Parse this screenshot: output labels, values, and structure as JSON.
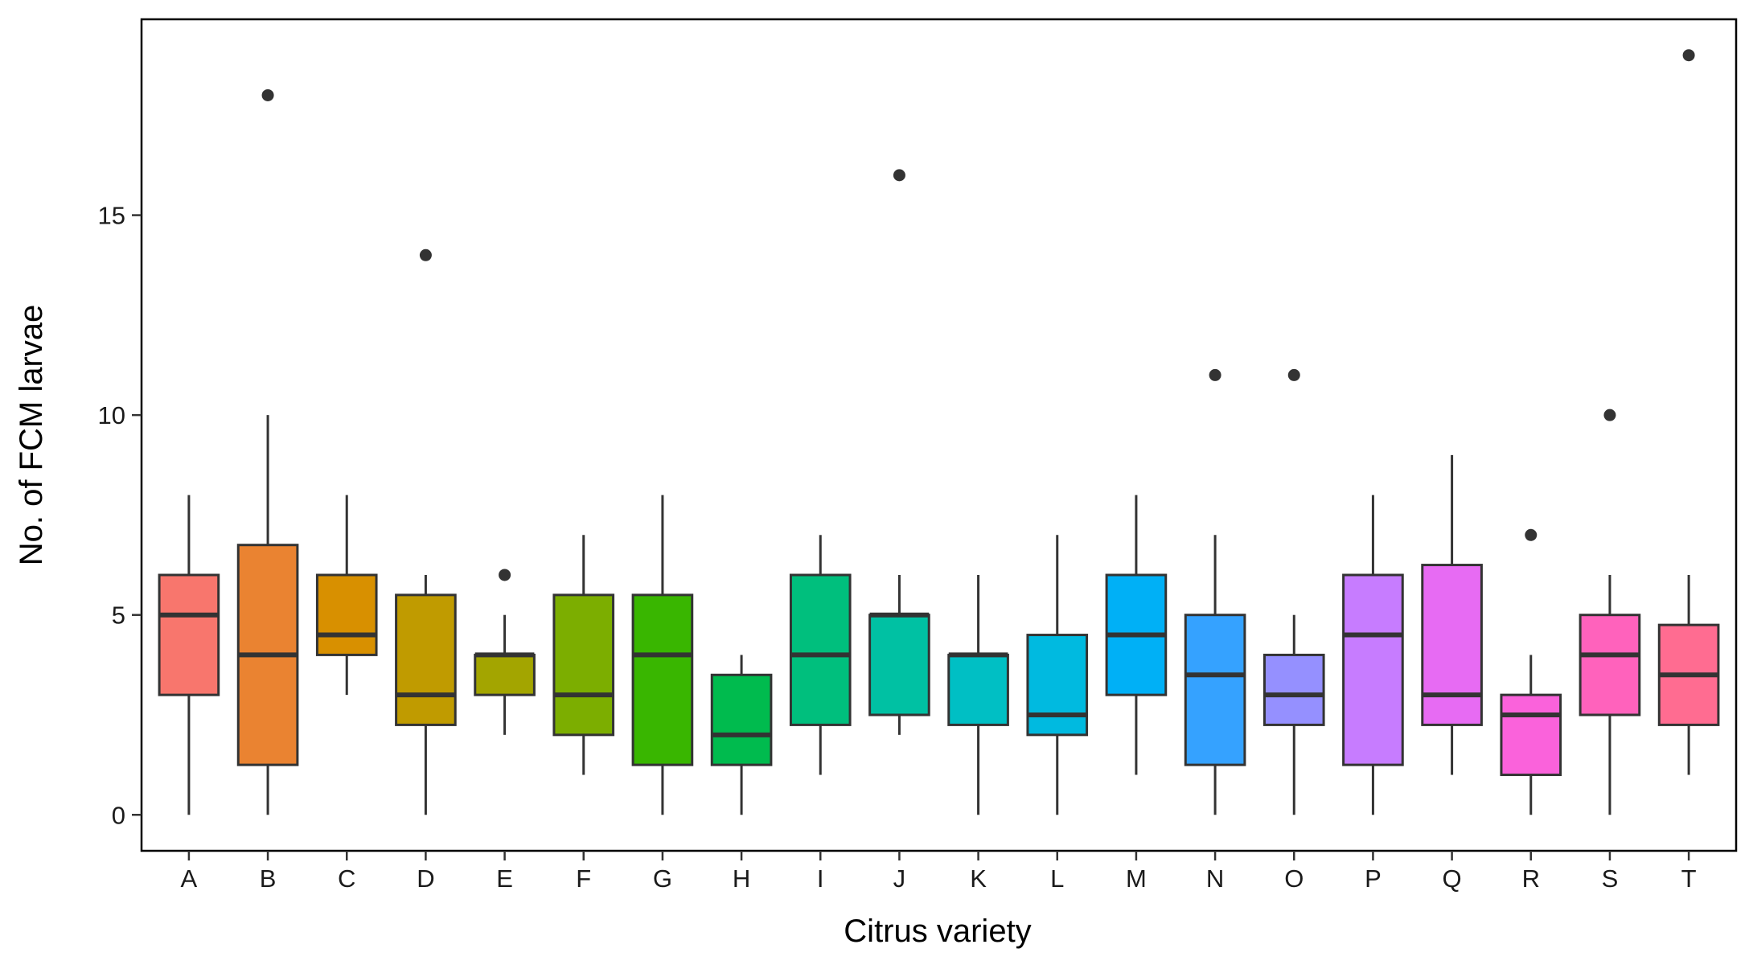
{
  "chart_data": {
    "type": "box",
    "xlabel": "Citrus variety",
    "ylabel": "No. of FCM larvae",
    "ylim": [
      -0.9,
      19.9
    ],
    "yticks": [
      0,
      5,
      10,
      15
    ],
    "grid": false,
    "legend": "none",
    "categories": [
      "A",
      "B",
      "C",
      "D",
      "E",
      "F",
      "G",
      "H",
      "I",
      "J",
      "K",
      "L",
      "M",
      "N",
      "O",
      "P",
      "Q",
      "R",
      "S",
      "T"
    ],
    "colors": [
      "#F8766D",
      "#EA8331",
      "#D89000",
      "#C09B00",
      "#A3A500",
      "#7CAE00",
      "#39B600",
      "#00BB4E",
      "#00BF7D",
      "#00C1A3",
      "#00BFC4",
      "#00BAE0",
      "#00B0F6",
      "#35A2FF",
      "#9590FF",
      "#C77CFF",
      "#E76BF3",
      "#FA62DB",
      "#FF62BC",
      "#FF6C91"
    ],
    "boxes": [
      {
        "category": "A",
        "whisker_low": 0,
        "q1": 3,
        "median": 5,
        "q3": 6,
        "whisker_high": 8,
        "outliers": []
      },
      {
        "category": "B",
        "whisker_low": 0,
        "q1": 1.25,
        "median": 4,
        "q3": 6.75,
        "whisker_high": 10,
        "outliers": [
          18
        ]
      },
      {
        "category": "C",
        "whisker_low": 3,
        "q1": 4,
        "median": 4.5,
        "q3": 6,
        "whisker_high": 8,
        "outliers": []
      },
      {
        "category": "D",
        "whisker_low": 0,
        "q1": 2.25,
        "median": 3,
        "q3": 5.5,
        "whisker_high": 6,
        "outliers": [
          14
        ]
      },
      {
        "category": "E",
        "whisker_low": 2,
        "q1": 3,
        "median": 4,
        "q3": 4,
        "whisker_high": 5,
        "outliers": [
          6
        ]
      },
      {
        "category": "F",
        "whisker_low": 1,
        "q1": 2,
        "median": 3,
        "q3": 5.5,
        "whisker_high": 7,
        "outliers": []
      },
      {
        "category": "G",
        "whisker_low": 0,
        "q1": 1.25,
        "median": 4,
        "q3": 5.5,
        "whisker_high": 8,
        "outliers": []
      },
      {
        "category": "H",
        "whisker_low": 0,
        "q1": 1.25,
        "median": 2,
        "q3": 3.5,
        "whisker_high": 4,
        "outliers": []
      },
      {
        "category": "I",
        "whisker_low": 1,
        "q1": 2.25,
        "median": 4,
        "q3": 6,
        "whisker_high": 7,
        "outliers": []
      },
      {
        "category": "J",
        "whisker_low": 2,
        "q1": 2.5,
        "median": 5,
        "q3": 5,
        "whisker_high": 6,
        "outliers": [
          16
        ]
      },
      {
        "category": "K",
        "whisker_low": 0,
        "q1": 2.25,
        "median": 4,
        "q3": 4,
        "whisker_high": 6,
        "outliers": []
      },
      {
        "category": "L",
        "whisker_low": 0,
        "q1": 2,
        "median": 2.5,
        "q3": 4.5,
        "whisker_high": 7,
        "outliers": []
      },
      {
        "category": "M",
        "whisker_low": 1,
        "q1": 3,
        "median": 4.5,
        "q3": 6,
        "whisker_high": 8,
        "outliers": []
      },
      {
        "category": "N",
        "whisker_low": 0,
        "q1": 1.25,
        "median": 3.5,
        "q3": 5,
        "whisker_high": 7,
        "outliers": [
          11
        ]
      },
      {
        "category": "O",
        "whisker_low": 0,
        "q1": 2.25,
        "median": 3,
        "q3": 4,
        "whisker_high": 5,
        "outliers": [
          11
        ]
      },
      {
        "category": "P",
        "whisker_low": 0,
        "q1": 1.25,
        "median": 4.5,
        "q3": 6,
        "whisker_high": 8,
        "outliers": []
      },
      {
        "category": "Q",
        "whisker_low": 1,
        "q1": 2.25,
        "median": 3,
        "q3": 6.25,
        "whisker_high": 9,
        "outliers": []
      },
      {
        "category": "R",
        "whisker_low": 0,
        "q1": 1,
        "median": 2.5,
        "q3": 3,
        "whisker_high": 4,
        "outliers": [
          7
        ]
      },
      {
        "category": "S",
        "whisker_low": 0,
        "q1": 2.5,
        "median": 4,
        "q3": 5,
        "whisker_high": 6,
        "outliers": [
          10
        ]
      },
      {
        "category": "T",
        "whisker_low": 1,
        "q1": 2.25,
        "median": 3.5,
        "q3": 4.75,
        "whisker_high": 6,
        "outliers": [
          19
        ]
      }
    ]
  }
}
